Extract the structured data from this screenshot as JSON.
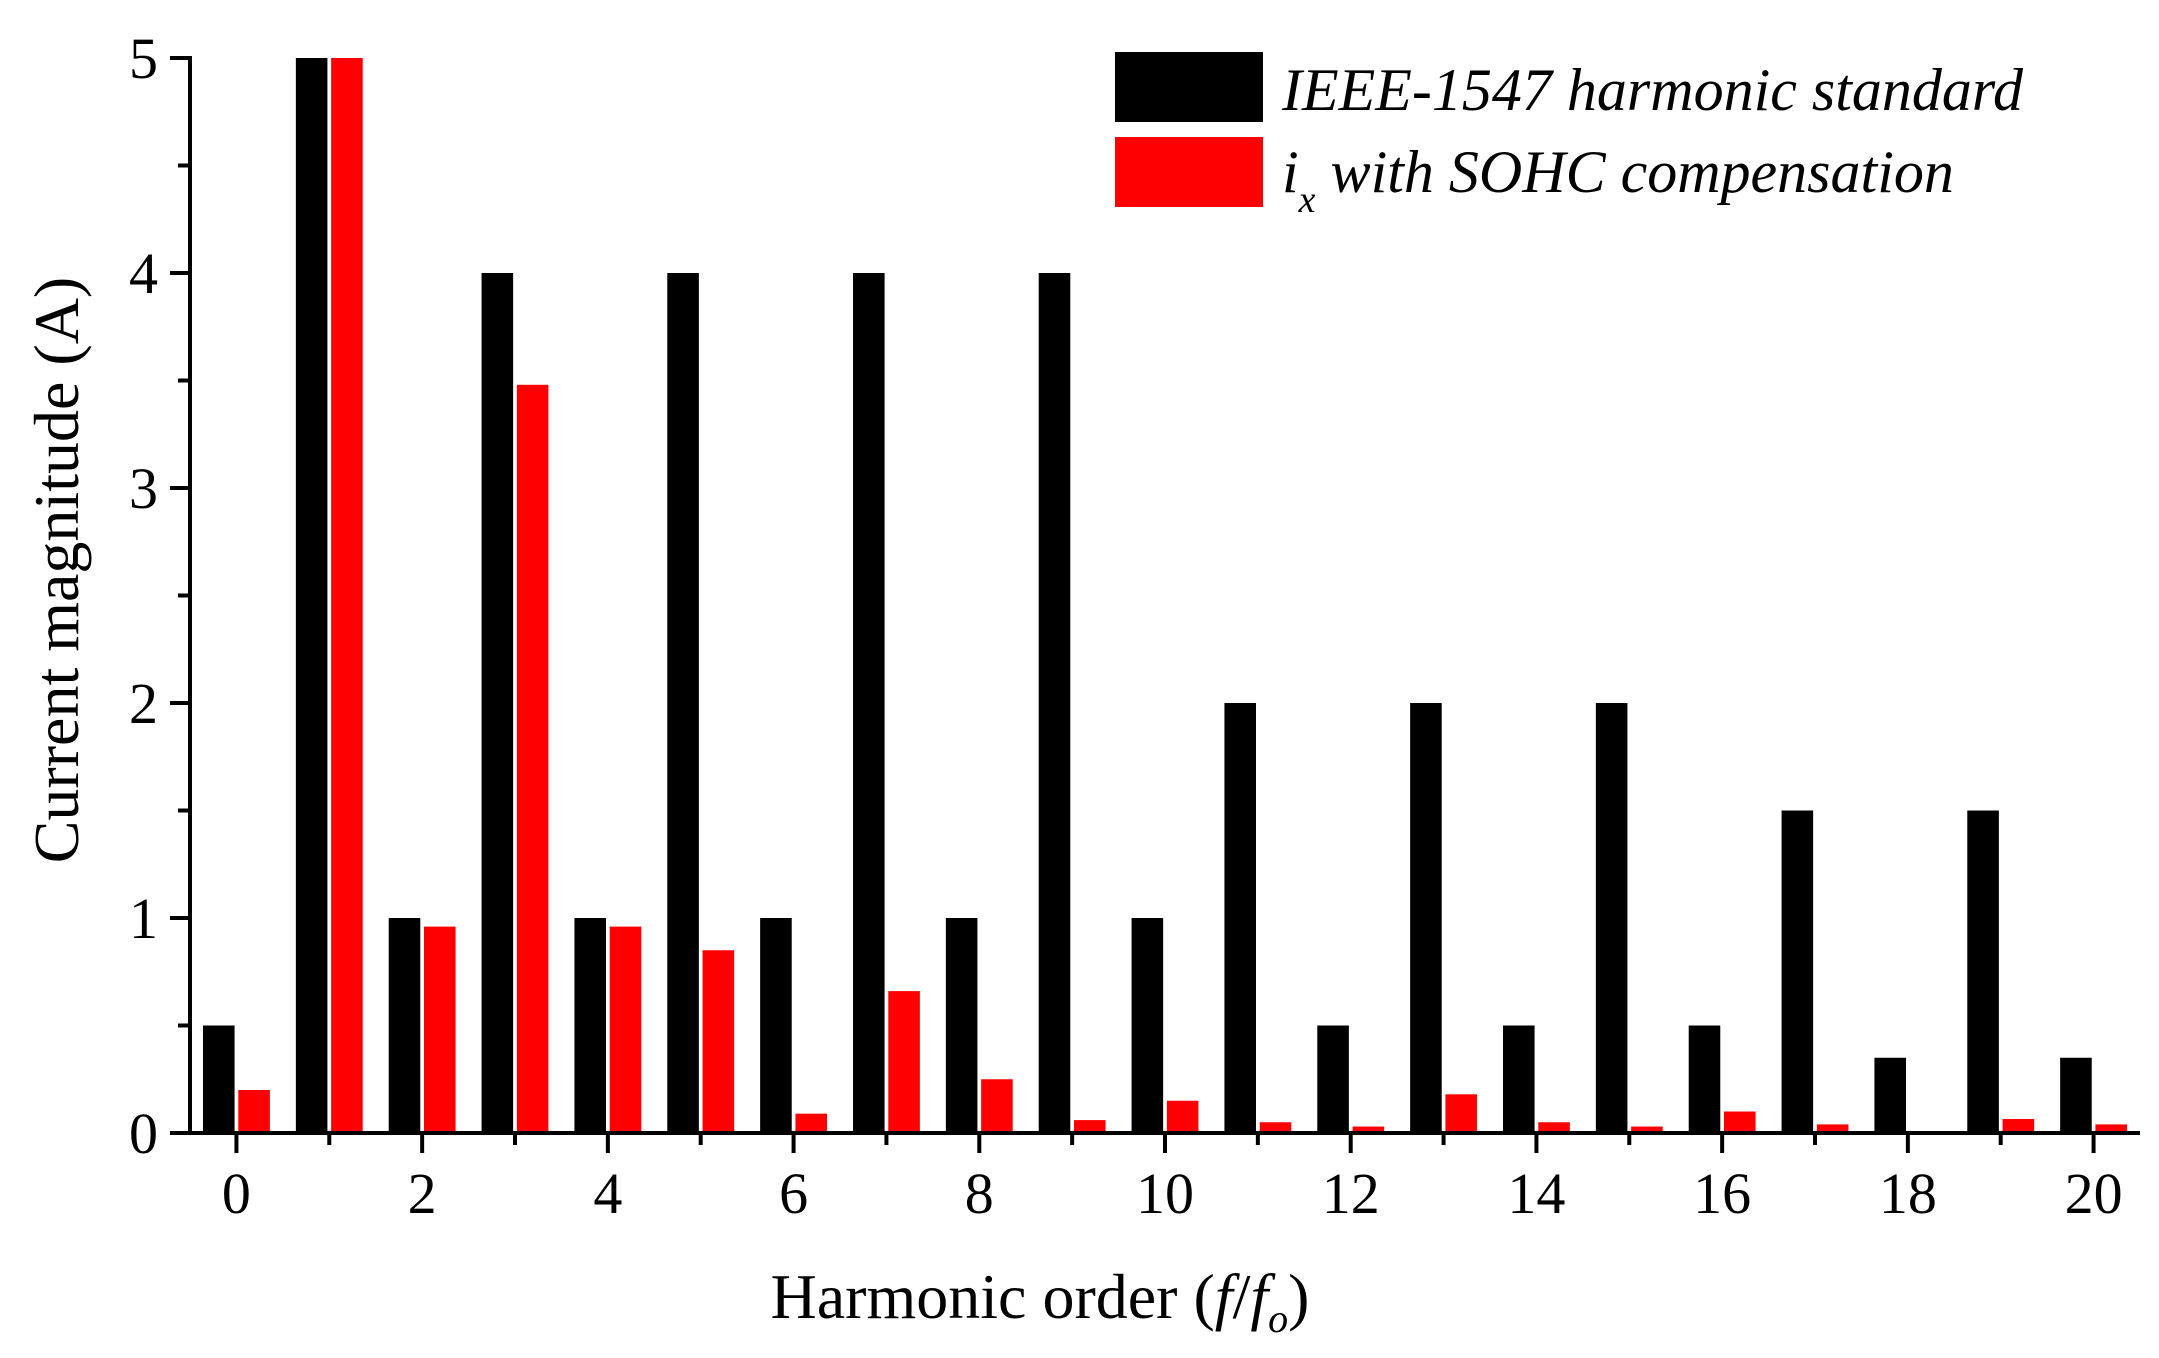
{
  "chart_data": {
    "type": "bar",
    "xlabel_main": "Harmonic order (",
    "xlabel_f": "f",
    "xlabel_slash": "/",
    "xlabel_fo_base": "f",
    "xlabel_fo_sub": "o",
    "xlabel_close": ")",
    "ylabel": "Current magnitude (A)",
    "xlim": [
      -0.5,
      20.5
    ],
    "ylim": [
      0,
      5
    ],
    "x_ticks": [
      0,
      2,
      4,
      6,
      8,
      10,
      12,
      14,
      16,
      18,
      20
    ],
    "y_ticks": [
      0,
      1,
      2,
      3,
      4,
      5
    ],
    "legend": {
      "placement": "top-right",
      "items": [
        {
          "label": "IEEE-1547 harmonic standard",
          "color": "#000000"
        },
        {
          "label_base": "i",
          "label_sub": "x",
          "label_rest": " with SOHC compensation",
          "color": "#ff0000"
        }
      ]
    },
    "x": [
      0,
      1,
      2,
      3,
      4,
      5,
      6,
      7,
      8,
      9,
      10,
      11,
      12,
      13,
      14,
      15,
      16,
      17,
      18,
      19,
      20
    ],
    "series": [
      {
        "color": "#000000",
        "values": [
          0.5,
          5,
          1,
          4,
          1,
          4,
          1,
          4,
          1,
          4,
          1,
          2,
          0.5,
          2,
          0.5,
          2,
          0.5,
          1.5,
          0.35,
          1.5,
          0.35
        ]
      },
      {
        "color": "#ff0000",
        "values": [
          0.2,
          5,
          0.96,
          3.48,
          0.96,
          0.85,
          0.09,
          0.66,
          0.25,
          0.06,
          0.15,
          0.05,
          0.03,
          0.18,
          0.05,
          0.03,
          0.1,
          0.04,
          0,
          0.065,
          0.04
        ]
      }
    ]
  }
}
